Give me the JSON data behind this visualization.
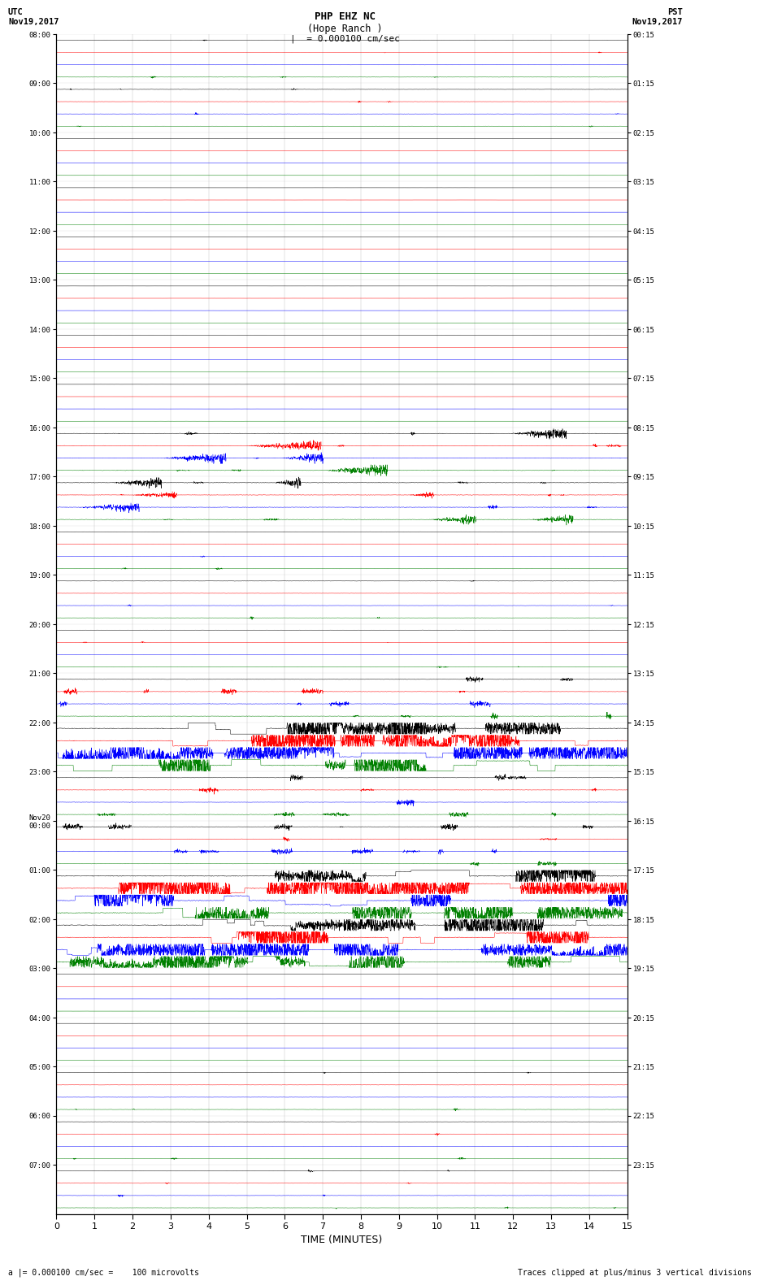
{
  "title_line1": "PHP EHZ NC",
  "title_line2": "(Hope Ranch )",
  "scale_label": "= 0.000100 cm/sec",
  "utc_label": "UTC\nNov19,2017",
  "pst_label": "PST\nNov19,2017",
  "xlabel": "TIME (MINUTES)",
  "footer_left": "a |= 0.000100 cm/sec =    100 microvolts",
  "footer_right": "Traces clipped at plus/minus 3 vertical divisions",
  "utc_times": [
    "08:00",
    "09:00",
    "10:00",
    "11:00",
    "12:00",
    "13:00",
    "14:00",
    "15:00",
    "16:00",
    "17:00",
    "18:00",
    "19:00",
    "20:00",
    "21:00",
    "22:00",
    "23:00",
    "Nov20\n00:00",
    "01:00",
    "02:00",
    "03:00",
    "04:00",
    "05:00",
    "06:00",
    "07:00"
  ],
  "pst_times": [
    "00:15",
    "01:15",
    "02:15",
    "03:15",
    "04:15",
    "05:15",
    "06:15",
    "07:15",
    "08:15",
    "09:15",
    "10:15",
    "11:15",
    "12:15",
    "13:15",
    "14:15",
    "15:15",
    "16:15",
    "17:15",
    "18:15",
    "19:15",
    "20:15",
    "21:15",
    "22:15",
    "23:15"
  ],
  "n_rows": 24,
  "n_traces_per_row": 4,
  "trace_colors": [
    "black",
    "red",
    "blue",
    "green"
  ],
  "bg_color": "white",
  "xmin": 0,
  "xmax": 15,
  "xticks": [
    0,
    1,
    2,
    3,
    4,
    5,
    6,
    7,
    8,
    9,
    10,
    11,
    12,
    13,
    14,
    15
  ],
  "seed": 42,
  "activity_levels": [
    2,
    2,
    1,
    1,
    1,
    1,
    1,
    1,
    4,
    4,
    2,
    2,
    2,
    3,
    5,
    3,
    3,
    5,
    5,
    1,
    1,
    2,
    2,
    2
  ],
  "noise_base": 0.018,
  "samples": 3000
}
